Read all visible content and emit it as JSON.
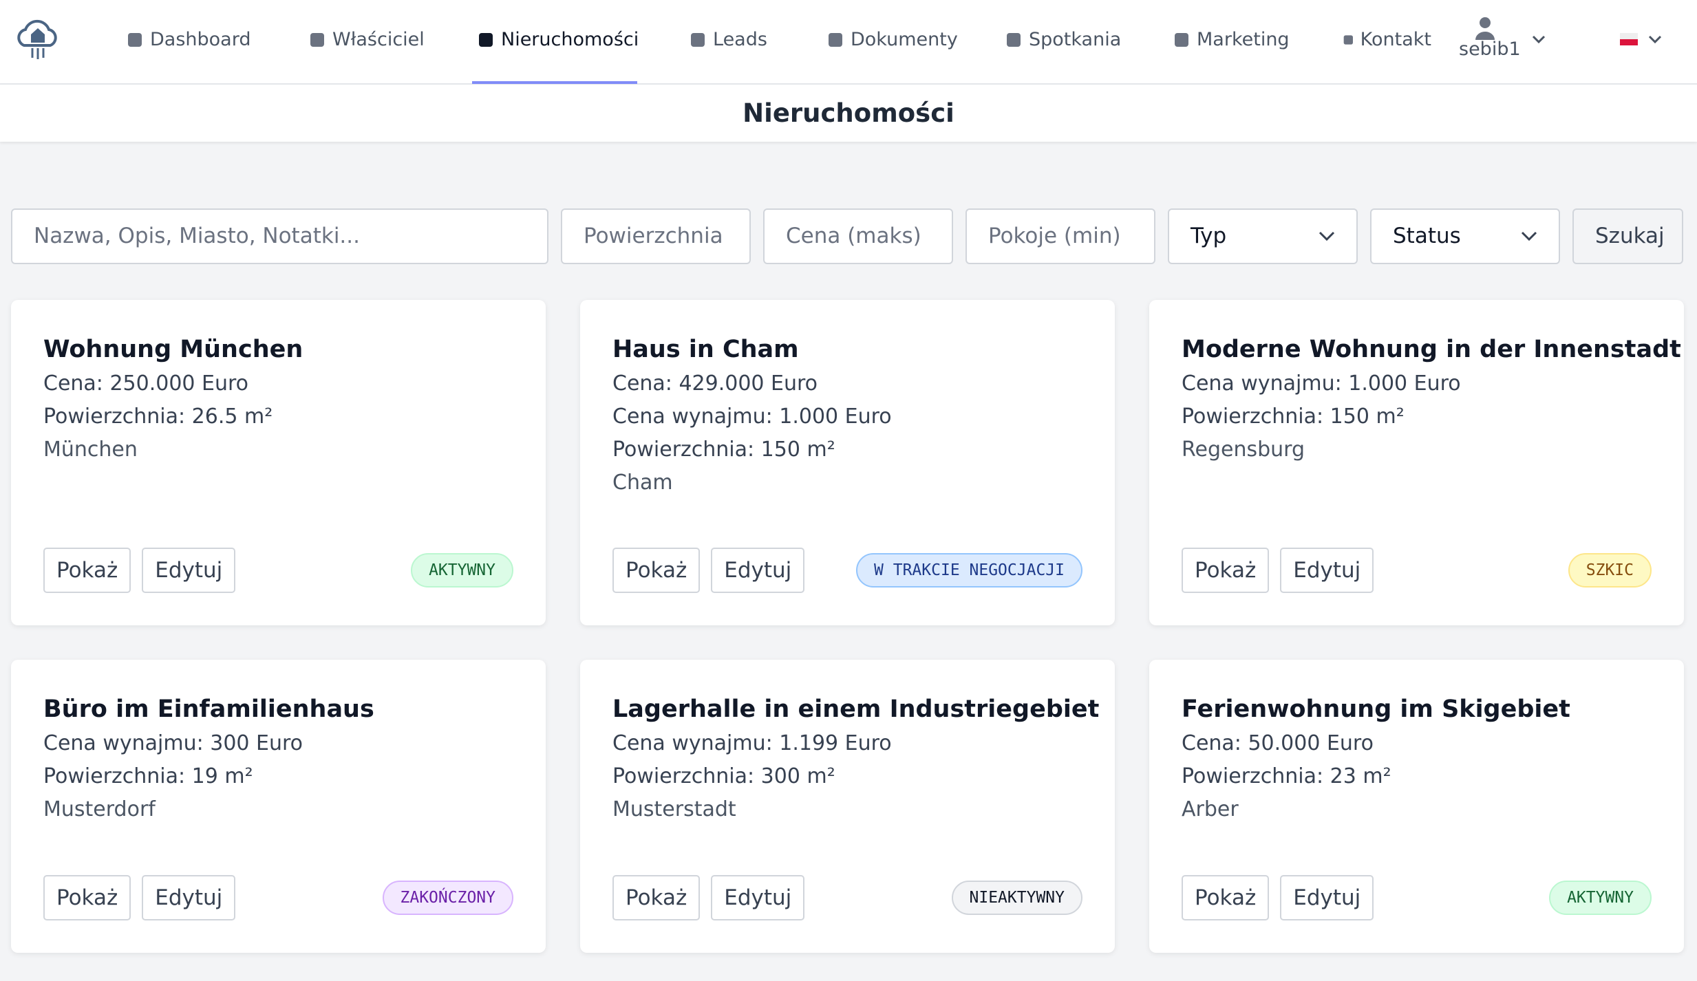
{
  "nav": {
    "items": [
      "Dashboard",
      "Właściciel",
      "Nieruchomości",
      "Leads",
      "Dokumenty",
      "Spotkania",
      "Marketing",
      "Kontakt"
    ],
    "active": 2,
    "user": "sebib1"
  },
  "page_title": "Nieruchomości",
  "filters": {
    "search": "Nazwa, Opis, Miasto, Notatki...",
    "area": "Powierzchnia",
    "price": "Cena (maks)",
    "rooms": "Pokoje (min)",
    "type": "Typ",
    "status": "Status",
    "submit": "Szukaj"
  },
  "properties": [
    {
      "title": "Wohnung München",
      "lines": [
        "Cena: 250.000 Euro",
        "Powierzchnia: 26.5 m²"
      ],
      "city": "München",
      "show": "Pokaż",
      "edit": "Edytuj",
      "status": "AKTYWNY"
    },
    {
      "title": "Haus in Cham",
      "lines": [
        "Cena: 429.000 Euro",
        "Cena wynajmu: 1.000 Euro",
        "Powierzchnia: 150 m²"
      ],
      "city": "Cham",
      "show": "Pokaż",
      "edit": "Edytuj",
      "status": "W TRAKCIE NEGOCJACJI"
    },
    {
      "title": "Moderne Wohnung in der Innenstadt",
      "lines": [
        "Cena wynajmu: 1.000 Euro",
        "Powierzchnia: 150 m²"
      ],
      "city": "Regensburg",
      "show": "Pokaż",
      "edit": "Edytuj",
      "status": "SZKIC"
    },
    {
      "title": "Büro im Einfamilienhaus",
      "lines": [
        "Cena wynajmu: 300 Euro",
        "Powierzchnia: 19 m²"
      ],
      "city": "Musterdorf",
      "show": "Pokaż",
      "edit": "Edytuj",
      "status": "ZAKOŃCZONY"
    },
    {
      "title": "Lagerhalle in einem Industriegebiet",
      "lines": [
        "Cena wynajmu: 1.199 Euro",
        "Powierzchnia: 300 m²"
      ],
      "city": "Musterstadt",
      "show": "Pokaż",
      "edit": "Edytuj",
      "status": "NIEAKTYWNY"
    },
    {
      "title": "Ferienwohnung im Skigebiet",
      "lines": [
        "Cena: 50.000 Euro",
        "Powierzchnia: 23 m²"
      ],
      "city": "Arber",
      "show": "Pokaż",
      "edit": "Edytuj",
      "status": "AKTYWNY"
    }
  ]
}
